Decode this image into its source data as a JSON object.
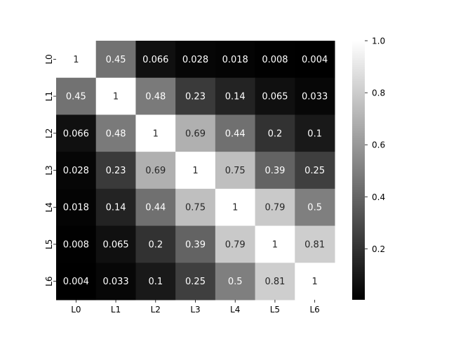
{
  "chart_data": {
    "type": "heatmap",
    "row_labels": [
      "L0",
      "L1",
      "L2",
      "L3",
      "L4",
      "L5",
      "L6"
    ],
    "col_labels": [
      "L0",
      "L1",
      "L2",
      "L3",
      "L4",
      "L5",
      "L6"
    ],
    "values": [
      [
        1,
        0.45,
        0.066,
        0.028,
        0.018,
        0.008,
        0.004
      ],
      [
        0.45,
        1,
        0.48,
        0.23,
        0.14,
        0.065,
        0.033
      ],
      [
        0.066,
        0.48,
        1,
        0.69,
        0.44,
        0.2,
        0.1
      ],
      [
        0.028,
        0.23,
        0.69,
        1,
        0.75,
        0.39,
        0.25
      ],
      [
        0.018,
        0.14,
        0.44,
        0.75,
        1,
        0.79,
        0.5
      ],
      [
        0.008,
        0.065,
        0.2,
        0.39,
        0.79,
        1,
        0.81
      ],
      [
        0.004,
        0.033,
        0.1,
        0.25,
        0.5,
        0.81,
        1
      ]
    ],
    "colormap": "gray",
    "vmin": 0.004,
    "vmax": 1.0,
    "colorbar_ticks": [
      "0.2",
      "0.4",
      "0.6",
      "0.8",
      "1.0"
    ],
    "colorbar_tick_values": [
      0.2,
      0.4,
      0.6,
      0.8,
      1.0
    ],
    "annotated": true,
    "title": "",
    "xlabel": "",
    "ylabel": ""
  }
}
